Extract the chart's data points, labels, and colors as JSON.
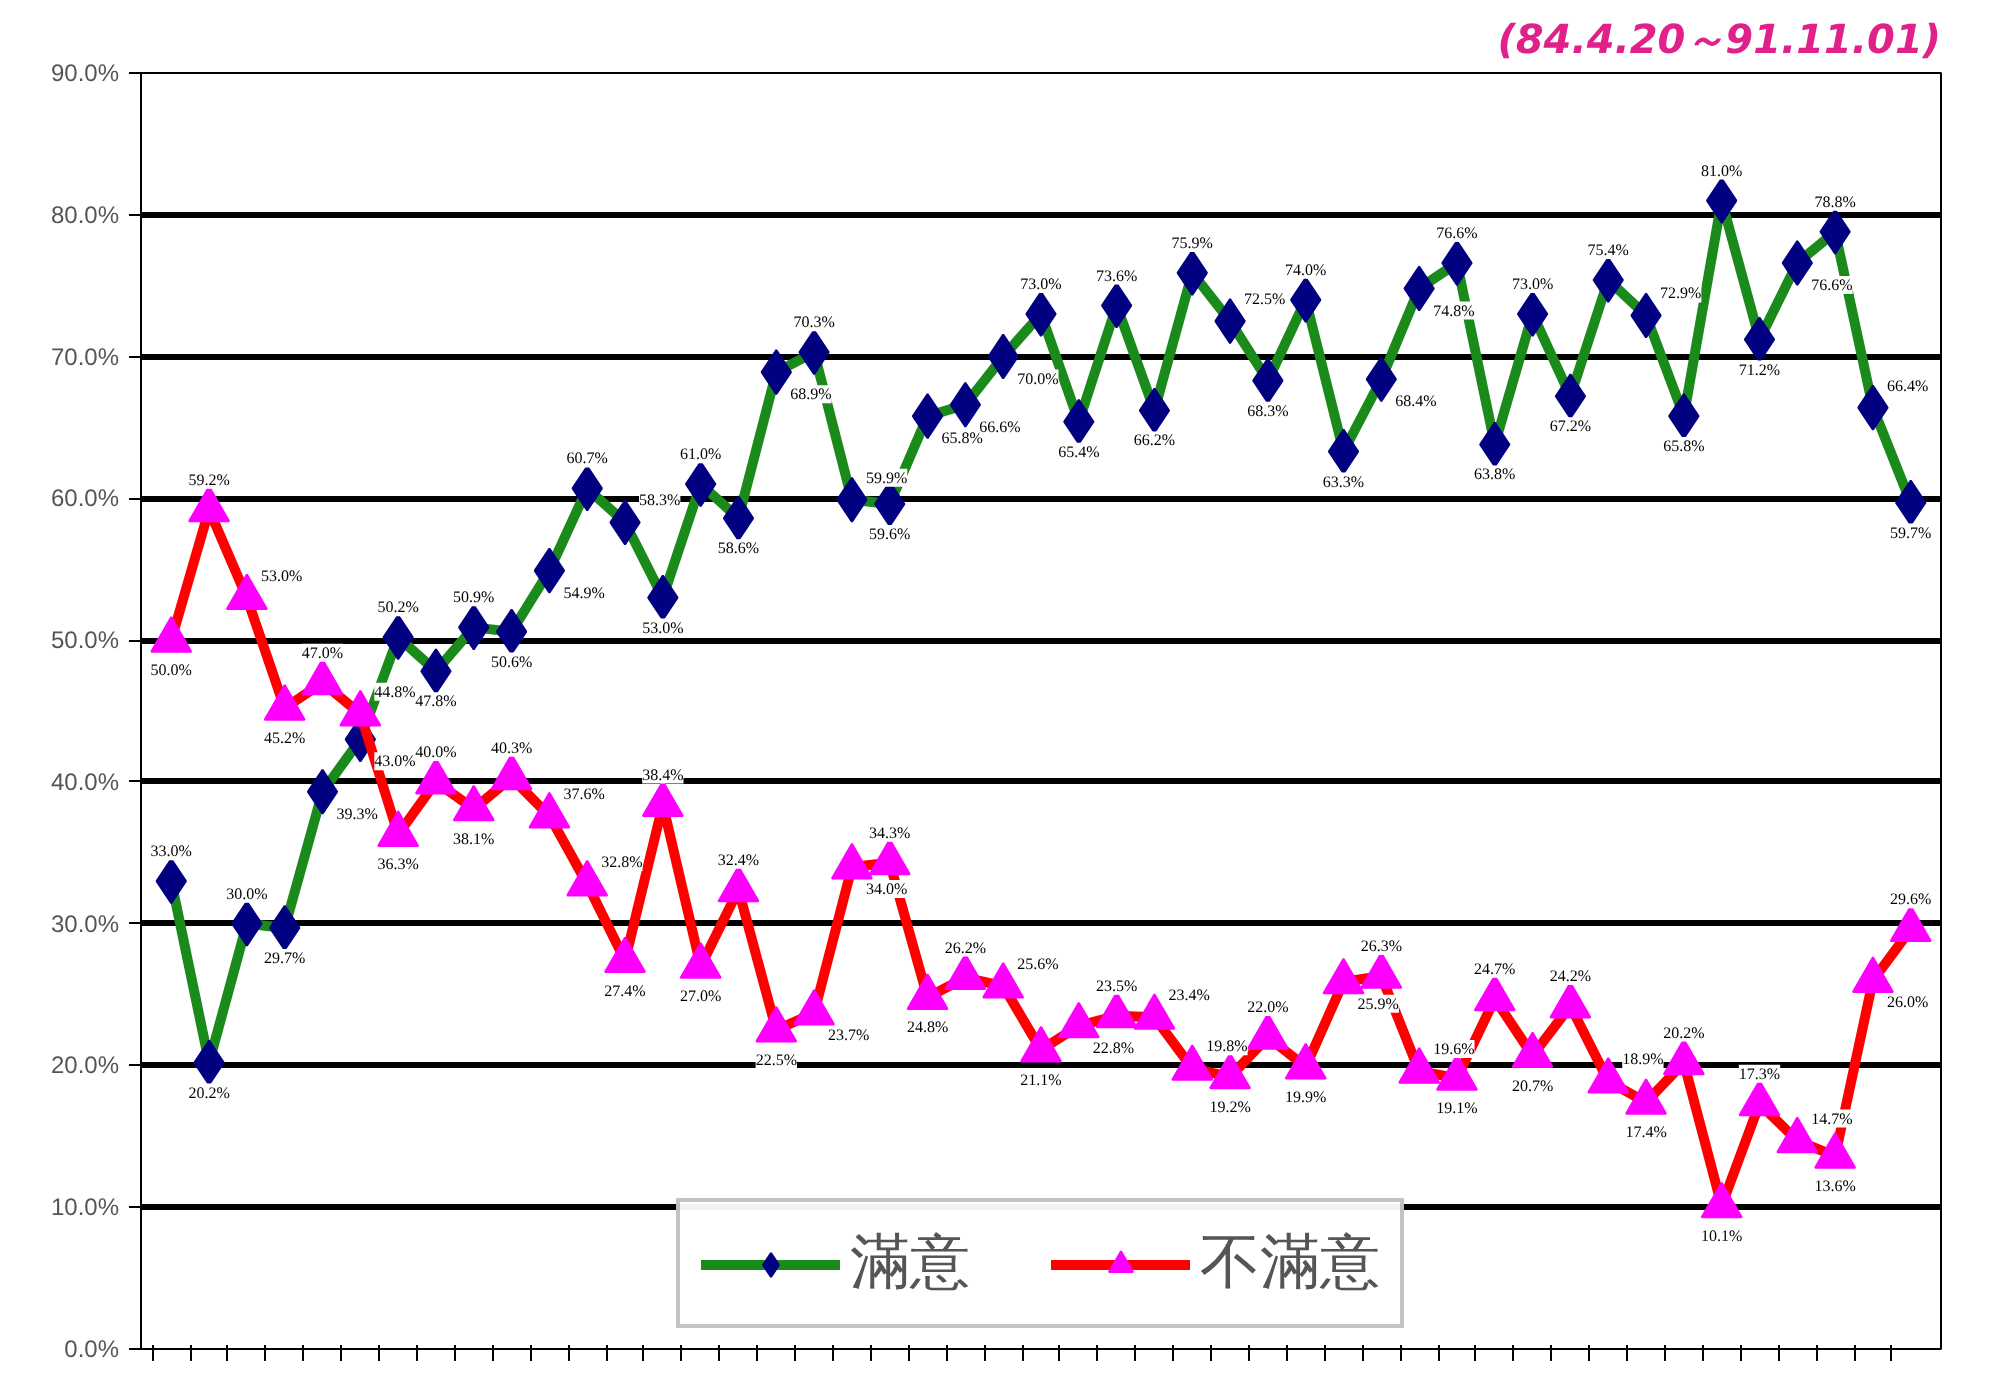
{
  "chart_data": {
    "type": "line",
    "title": "(84.4.20～91.11.01)",
    "categories": [
      null,
      null,
      null,
      null,
      null,
      null,
      null,
      null,
      null,
      null,
      null,
      null,
      null,
      null,
      null,
      null,
      null,
      null,
      null,
      null,
      null,
      null,
      null,
      null,
      null,
      null,
      null,
      null,
      null,
      null,
      null,
      null,
      null,
      null,
      null,
      null,
      null,
      null,
      null,
      null,
      null,
      null,
      null,
      null,
      null,
      null,
      null
    ],
    "series": [
      {
        "name": "滿意",
        "color": "#1a8a1a",
        "colors": [
          "#000080",
          "#000080",
          "#000080",
          "#000080",
          "#000080",
          "#000080",
          "#000080",
          "#000080",
          "#000080",
          "#000080",
          "#000080",
          "#000080",
          "#000080",
          "#000080",
          "#000080",
          "#000080",
          "#000080",
          "#000080",
          "#000080",
          "#000080",
          "#000080",
          "#000080",
          "#000080",
          "#000080",
          "#000080",
          "#000080",
          "#000080",
          "#000080",
          "#000080",
          "#000080",
          "#000080",
          "#000080",
          "#000080",
          "#000080",
          "#000080",
          "#000080",
          "#000080",
          "#000080",
          "#000080",
          "#000080",
          "#000080",
          "#000080",
          "#000080",
          "#000080",
          "#000080",
          "#000080",
          "#000080"
        ],
        "marker": "diamond",
        "values": [
          33.0,
          20.2,
          30.0,
          29.7,
          39.3,
          43.0,
          50.2,
          47.8,
          50.9,
          50.6,
          54.9,
          60.7,
          58.3,
          53.0,
          61.0,
          58.6,
          68.9,
          70.3,
          59.9,
          59.6,
          65.8,
          66.6,
          70.0,
          73.0,
          65.4,
          73.6,
          66.2,
          75.9,
          72.5,
          68.3,
          74.0,
          63.3,
          68.4,
          74.8,
          76.6,
          63.8,
          73.0,
          67.2,
          75.4,
          72.9,
          65.8,
          81.0,
          71.2,
          76.6,
          78.8,
          66.4,
          59.7
        ],
        "value_labels": [
          "33.0%",
          "20.2%",
          "30.0%",
          "29.7%",
          "39.3%",
          "43.0%",
          "50.2%",
          "47.8%",
          "50.9%",
          "50.6%",
          "54.9%",
          "60.7%",
          "58.3%",
          "53.0%",
          "61.0%",
          "58.6%",
          "68.9%",
          "70.3%",
          "59.9%",
          "59.6%",
          "65.8%",
          "66.6%",
          "70.0%",
          "73.0%",
          "65.4%",
          "73.6%",
          "66.2%",
          "75.9%",
          "72.5%",
          "68.3%",
          "74.0%",
          "63.3%",
          "68.4%",
          "74.8%",
          "76.6%",
          "63.8%",
          "73.0%",
          "67.2%",
          "75.4%",
          "72.9%",
          "65.8%",
          "81.0%",
          "71.2%",
          "76.6%",
          "78.8%",
          "66.4%",
          "59.7%"
        ]
      },
      {
        "name": "不滿意",
        "color": "#ff0000",
        "colors": [
          "#ff00ff",
          "#ff00ff",
          "#ff00ff",
          "#ff00ff",
          "#ff00ff",
          "#ff00ff",
          "#ff00ff",
          "#ff00ff",
          "#ff00ff",
          "#ff00ff",
          "#ff00ff",
          "#ff00ff",
          "#ff00ff",
          "#ff00ff",
          "#ff00ff",
          "#ff00ff",
          "#ff00ff",
          "#ff00ff",
          "#ff00ff",
          "#ff00ff",
          "#ff00ff",
          "#ff00ff",
          "#ff00ff",
          "#ff00ff",
          "#ff00ff",
          "#ff00ff",
          "#ff00ff",
          "#ff00ff",
          "#ff00ff",
          "#ff00ff",
          "#ff00ff",
          "#ff00ff",
          "#ff00ff",
          "#ff00ff",
          "#ff00ff",
          "#ff00ff",
          "#ff00ff",
          "#ff00ff",
          "#ff00ff",
          "#ff00ff",
          "#ff00ff",
          "#ff00ff",
          "#ff00ff",
          "#ff00ff",
          "#ff00ff",
          "#ff00ff",
          "#ff00ff"
        ],
        "marker": "triangle",
        "values": [
          50.0,
          59.2,
          53.0,
          45.2,
          47.0,
          44.8,
          36.3,
          40.0,
          38.1,
          40.3,
          37.6,
          32.8,
          27.4,
          38.4,
          27.0,
          32.4,
          22.5,
          23.7,
          34.0,
          34.3,
          24.8,
          26.2,
          25.6,
          21.1,
          22.8,
          23.5,
          23.4,
          19.8,
          19.2,
          22.0,
          19.9,
          25.9,
          26.3,
          19.6,
          19.1,
          24.7,
          20.7,
          24.2,
          18.9,
          17.4,
          20.2,
          10.1,
          17.3,
          14.7,
          13.6,
          26.0,
          29.6
        ],
        "value_labels": [
          "50.0%",
          "59.2%",
          "53.0%",
          "45.2%",
          "47.0%",
          "44.8%",
          "36.3%",
          "40.0%",
          "38.1%",
          "40.3%",
          "37.6%",
          "32.8%",
          "27.4%",
          "38.4%",
          "27.0%",
          "32.4%",
          "22.5%",
          "23.7%",
          "34.0%",
          "34.3%",
          "24.8%",
          "26.2%",
          "25.6%",
          "21.1%",
          "22.8%",
          "23.5%",
          "23.4%",
          "19.8%",
          "19.2%",
          "22.0%",
          "19.9%",
          "25.9%",
          "26.3%",
          "19.6%",
          "19.1%",
          "24.7%",
          "20.7%",
          "24.2%",
          "18.9%",
          "17.4%",
          "20.2%",
          "10.1%",
          "17.3%",
          "14.7%",
          "13.6%",
          "26.0%",
          "29.6%"
        ]
      }
    ],
    "ylim": [
      0,
      90
    ],
    "yticks": [
      {
        "value": 0,
        "label": "0.0%"
      },
      {
        "value": 10,
        "label": "10.0%"
      },
      {
        "value": 20,
        "label": "20.0%"
      },
      {
        "value": 30,
        "label": "30.0%"
      },
      {
        "value": 40,
        "label": "40.0%"
      },
      {
        "value": 50,
        "label": "50.0%"
      },
      {
        "value": 60,
        "label": "60.0%"
      },
      {
        "value": 70,
        "label": "70.0%"
      },
      {
        "value": 80,
        "label": "80.0%"
      },
      {
        "value": 90,
        "label": "90.0%"
      }
    ],
    "grid": "y",
    "legend": "bottom",
    "line_style": "solid"
  }
}
